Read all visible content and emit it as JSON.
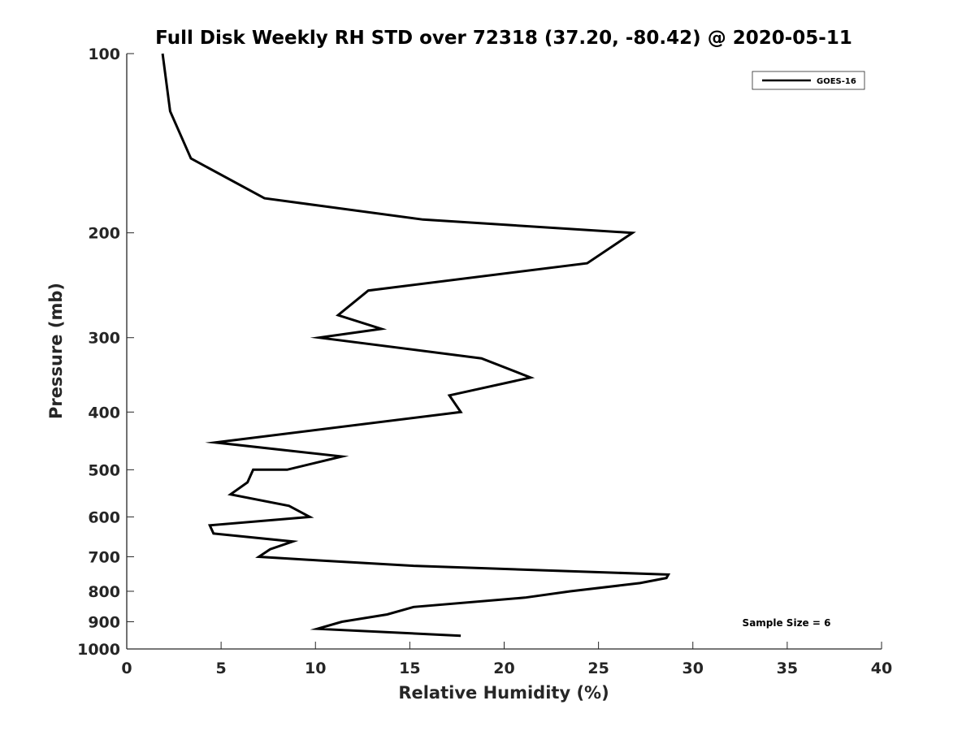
{
  "chart_data": {
    "type": "line",
    "title": "Full Disk Weekly RH STD over 72318 (37.20, -80.42) @ 2020-05-11",
    "xlabel": "Relative Humidity (%)",
    "ylabel": "Pressure (mb)",
    "xlim": [
      0,
      40
    ],
    "ylim": [
      100,
      1000
    ],
    "y_scale": "log",
    "y_reversed": true,
    "grid": false,
    "x_ticks": [
      0,
      5,
      10,
      15,
      20,
      25,
      30,
      35,
      40
    ],
    "x_tick_labels": [
      "0",
      "5",
      "10",
      "15",
      "20",
      "25",
      "30",
      "35",
      "40"
    ],
    "y_ticks": [
      100,
      200,
      300,
      400,
      500,
      600,
      700,
      800,
      900,
      1000
    ],
    "y_tick_labels": [
      "100",
      "200",
      "300",
      "400",
      "500",
      "600",
      "700",
      "800",
      "900",
      "1000"
    ],
    "legend_position": "top-right",
    "series": [
      {
        "name": "GOES-16",
        "color": "#000000",
        "points": [
          {
            "x": 1.9,
            "y": 100
          },
          {
            "x": 2.3,
            "y": 125
          },
          {
            "x": 3.4,
            "y": 150
          },
          {
            "x": 7.3,
            "y": 175
          },
          {
            "x": 15.7,
            "y": 190
          },
          {
            "x": 26.8,
            "y": 200
          },
          {
            "x": 24.4,
            "y": 225
          },
          {
            "x": 12.8,
            "y": 250
          },
          {
            "x": 11.2,
            "y": 275
          },
          {
            "x": 13.5,
            "y": 290
          },
          {
            "x": 10.2,
            "y": 300
          },
          {
            "x": 18.8,
            "y": 325
          },
          {
            "x": 21.4,
            "y": 350
          },
          {
            "x": 17.1,
            "y": 375
          },
          {
            "x": 17.7,
            "y": 400
          },
          {
            "x": 4.7,
            "y": 450
          },
          {
            "x": 11.4,
            "y": 475
          },
          {
            "x": 8.5,
            "y": 500
          },
          {
            "x": 6.7,
            "y": 500
          },
          {
            "x": 6.4,
            "y": 525
          },
          {
            "x": 5.5,
            "y": 550
          },
          {
            "x": 8.6,
            "y": 575
          },
          {
            "x": 9.7,
            "y": 600
          },
          {
            "x": 4.4,
            "y": 620
          },
          {
            "x": 4.6,
            "y": 640
          },
          {
            "x": 8.8,
            "y": 660
          },
          {
            "x": 7.6,
            "y": 680
          },
          {
            "x": 7.0,
            "y": 700
          },
          {
            "x": 10.2,
            "y": 710
          },
          {
            "x": 15.2,
            "y": 725
          },
          {
            "x": 28.7,
            "y": 750
          },
          {
            "x": 28.6,
            "y": 760
          },
          {
            "x": 27.2,
            "y": 775
          },
          {
            "x": 23.5,
            "y": 800
          },
          {
            "x": 21.1,
            "y": 820
          },
          {
            "x": 15.2,
            "y": 850
          },
          {
            "x": 13.8,
            "y": 875
          },
          {
            "x": 11.4,
            "y": 900
          },
          {
            "x": 10.1,
            "y": 925
          },
          {
            "x": 17.7,
            "y": 950
          }
        ]
      }
    ],
    "annotations": [
      {
        "text": "Sample Size = 6",
        "x": 35.5,
        "y": 900
      }
    ]
  }
}
